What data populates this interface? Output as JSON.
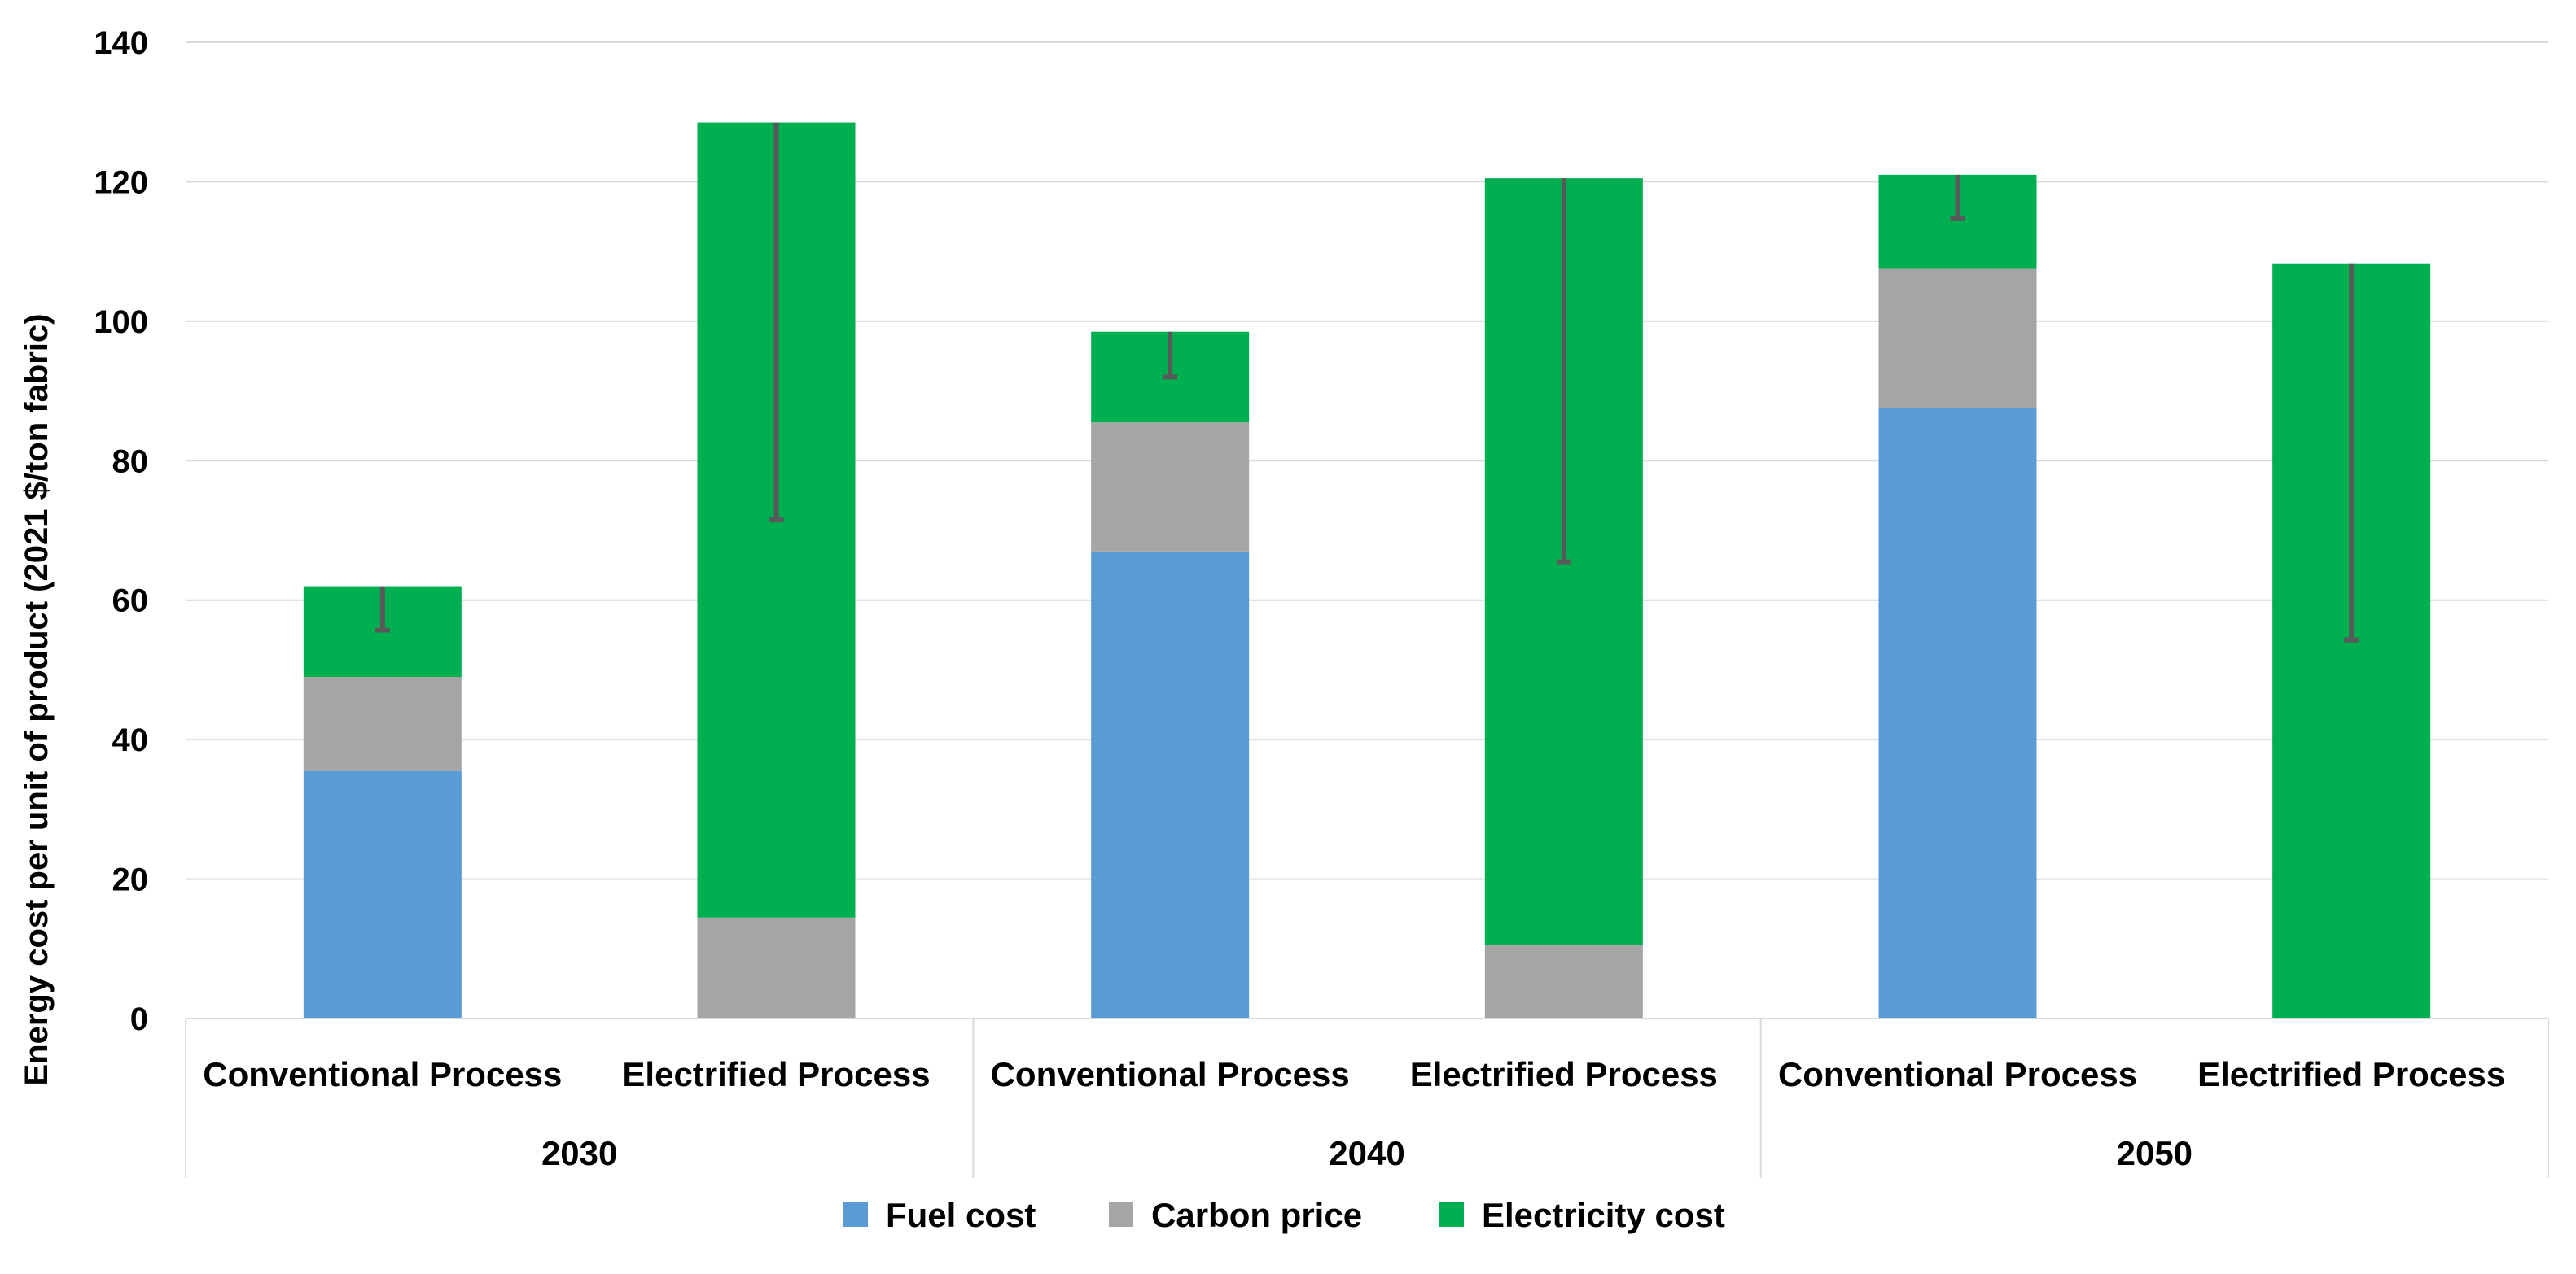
{
  "chart_data": {
    "type": "bar",
    "stacked": true,
    "title": "",
    "ylabel": "Energy cost per unit of product  (2021 $/ton fabric)",
    "xlabel": "",
    "ylim": [
      0,
      140
    ],
    "yticks": [
      0,
      20,
      40,
      60,
      80,
      100,
      120,
      140
    ],
    "grid": true,
    "groups": [
      {
        "label": "2030",
        "categories": [
          "Conventional Process",
          "Electrified Process"
        ]
      },
      {
        "label": "2040",
        "categories": [
          "Conventional Process",
          "Electrified Process"
        ]
      },
      {
        "label": "2050",
        "categories": [
          "Conventional Process",
          "Electrified Process"
        ]
      }
    ],
    "categories": [
      "2030 Conventional Process",
      "2030 Electrified Process",
      "2040 Conventional Process",
      "2040 Electrified Process",
      "2050 Conventional Process",
      "2050 Electrified Process"
    ],
    "series": [
      {
        "name": "Fuel cost",
        "color": "#5b9bd5",
        "values": [
          35.5,
          0,
          67,
          0,
          87.5,
          0
        ]
      },
      {
        "name": "Carbon price",
        "color": "#a5a5a5",
        "values": [
          13.5,
          14.5,
          18.5,
          10.5,
          20,
          0
        ]
      },
      {
        "name": "Electricity cost",
        "color": "#00b050",
        "values": [
          13,
          114,
          13,
          110,
          13.5,
          108.3
        ]
      }
    ],
    "error_bars": {
      "color": "#595959",
      "lower": [
        55.7,
        71.5,
        92,
        65.5,
        114.7,
        54.3
      ]
    },
    "legend": {
      "position": "bottom"
    }
  }
}
